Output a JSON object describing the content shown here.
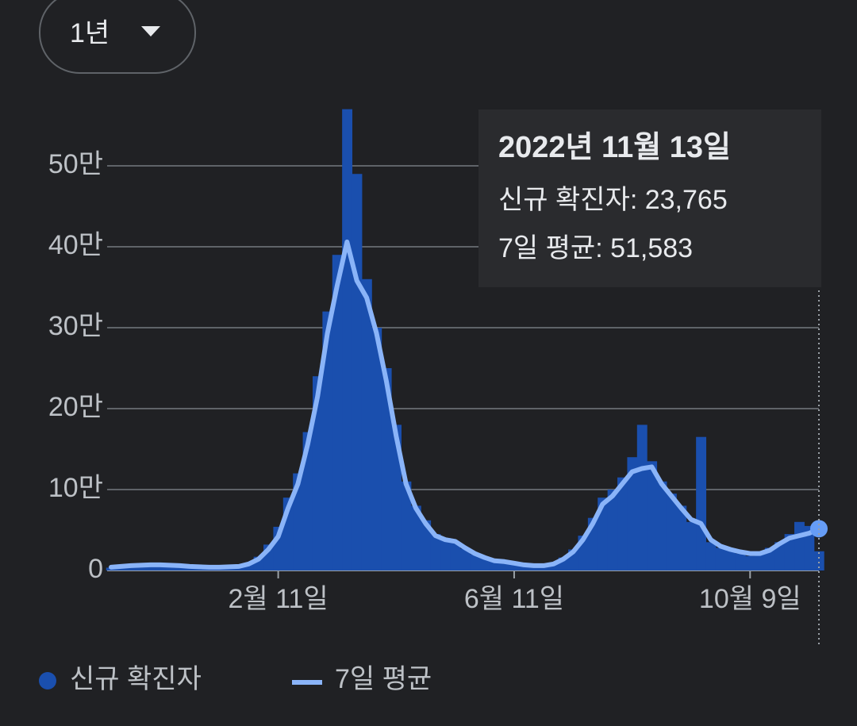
{
  "range_button": "1년",
  "chart_data": {
    "type": "bar-line",
    "categories": [
      null,
      null,
      null,
      null,
      null,
      null,
      null,
      null,
      null,
      null,
      null,
      null,
      null,
      null,
      null,
      null,
      null,
      "2월 11일",
      null,
      null,
      null,
      null,
      null,
      null,
      null,
      null,
      null,
      null,
      null,
      null,
      null,
      null,
      null,
      null,
      null,
      null,
      null,
      null,
      null,
      null,
      null,
      "6월 11일",
      null,
      null,
      null,
      null,
      null,
      null,
      null,
      null,
      null,
      null,
      null,
      null,
      null,
      null,
      null,
      null,
      null,
      null,
      null,
      null,
      null,
      null,
      null,
      "10월 9일",
      null,
      null,
      null,
      null,
      null,
      null,
      null
    ],
    "series": [
      {
        "name": "신규 확진자",
        "color": "#1a4fae",
        "kind": "bar",
        "values": [
          3500,
          4800,
          6200,
          6000,
          7500,
          6800,
          6200,
          5800,
          4500,
          4200,
          3800,
          4100,
          4800,
          5500,
          9000,
          17000,
          32000,
          54000,
          90000,
          120000,
          171000,
          240000,
          320000,
          390000,
          570000,
          490000,
          360000,
          300000,
          250000,
          180000,
          110000,
          80000,
          62000,
          45000,
          40000,
          35000,
          27000,
          20000,
          15000,
          11000,
          10000,
          7000,
          6500,
          5800,
          6500,
          9000,
          16000,
          26000,
          43000,
          65000,
          90000,
          100000,
          115000,
          140000,
          180000,
          135000,
          110000,
          95000,
          80000,
          60000,
          165000,
          35000,
          28000,
          25000,
          21000,
          18000,
          22000,
          28000,
          35000,
          45000,
          60000,
          55000,
          23765
        ]
      },
      {
        "name": "7일 평균",
        "color": "#8ab4f8",
        "kind": "line",
        "values": [
          4000,
          5000,
          6000,
          6500,
          7000,
          7000,
          6500,
          6000,
          5000,
          4500,
          4000,
          4000,
          4500,
          5000,
          8000,
          14000,
          26000,
          42000,
          77000,
          107000,
          156000,
          215000,
          293000,
          352000,
          406000,
          358000,
          337000,
          293000,
          234000,
          166000,
          107000,
          77000,
          58000,
          43000,
          38000,
          36000,
          28000,
          21000,
          16000,
          12000,
          11000,
          9000,
          7000,
          6000,
          6000,
          8000,
          14000,
          23000,
          38000,
          58000,
          82000,
          92000,
          107000,
          122000,
          126000,
          128000,
          107000,
          92000,
          77000,
          63000,
          58000,
          38000,
          30000,
          26000,
          23000,
          21000,
          21000,
          25000,
          33000,
          40000,
          43000,
          46000,
          51583
        ]
      }
    ],
    "ylim": [
      0,
      600000
    ],
    "yticks": [
      0,
      {
        "value": 100000,
        "label": "10만"
      },
      {
        "value": 200000,
        "label": "20만"
      },
      {
        "value": 300000,
        "label": "30만"
      },
      {
        "value": 400000,
        "label": "40만"
      },
      {
        "value": 500000,
        "label": "50만"
      }
    ],
    "grid": true,
    "tooltip": {
      "date": "2022년 11월 13일",
      "lines": [
        "신규 확진자: 23,765",
        "7일 평균: 51,583"
      ]
    }
  }
}
